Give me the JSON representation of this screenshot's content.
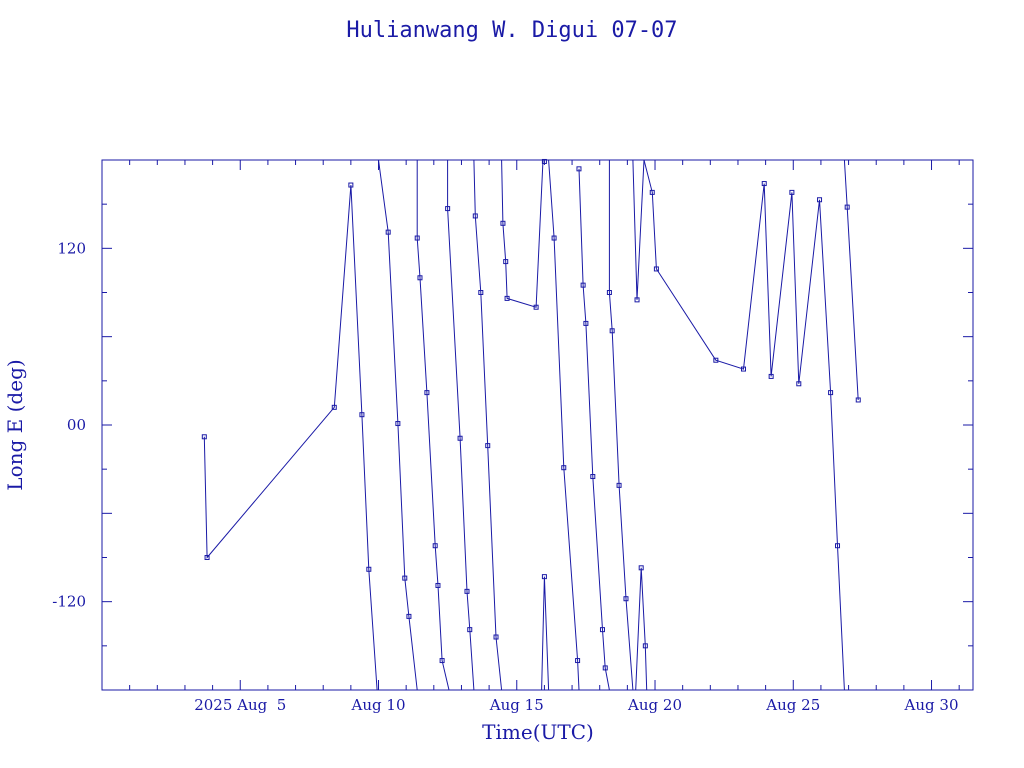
{
  "chart_data": {
    "type": "scatter",
    "title": "Hulianwang W. Digui 07-07",
    "xlabel": "Time(UTC)",
    "ylabel": "Long E (deg)",
    "x_tick_labels": [
      "2025 Aug  5",
      "Aug 10",
      "Aug 15",
      "Aug 20",
      "Aug 25",
      "Aug 30"
    ],
    "x_tick_values": [
      5,
      10,
      15,
      20,
      25,
      30
    ],
    "y_tick_labels": [
      "-120",
      "00",
      "120"
    ],
    "y_tick_values": [
      -120,
      0,
      120
    ],
    "xlim": [
      0,
      31.5
    ],
    "ylim": [
      -180,
      180
    ],
    "colors": {
      "line": "#1a1aa6",
      "background": "#ffffff"
    },
    "segments": [
      [
        [
          3.7,
          -8
        ],
        [
          3.8,
          -90
        ],
        [
          8.4,
          12
        ],
        [
          9.0,
          163
        ],
        [
          9.4,
          7
        ],
        [
          9.65,
          -98
        ],
        [
          9.95,
          -180
        ]
      ],
      [
        [
          10.0,
          180
        ],
        [
          10.35,
          131
        ],
        [
          10.7,
          1
        ],
        [
          10.95,
          -104
        ],
        [
          11.1,
          -130
        ],
        [
          11.4,
          -180
        ]
      ],
      [
        [
          11.4,
          180
        ],
        [
          11.4,
          127
        ],
        [
          11.5,
          100
        ],
        [
          11.75,
          22
        ],
        [
          12.05,
          -82
        ],
        [
          12.15,
          -109
        ],
        [
          12.3,
          -160
        ],
        [
          12.55,
          -180
        ]
      ],
      [
        [
          12.5,
          180
        ],
        [
          12.5,
          147
        ],
        [
          12.95,
          -9
        ],
        [
          13.2,
          -113
        ],
        [
          13.3,
          -139
        ],
        [
          13.45,
          -180
        ]
      ],
      [
        [
          13.45,
          180
        ],
        [
          13.5,
          142
        ],
        [
          13.7,
          90
        ],
        [
          13.95,
          -14
        ],
        [
          14.25,
          -144
        ],
        [
          14.45,
          -180
        ]
      ],
      [
        [
          14.45,
          180
        ],
        [
          14.5,
          137
        ],
        [
          14.6,
          111
        ],
        [
          14.65,
          86
        ],
        [
          15.7,
          80
        ],
        [
          15.95,
          180
        ]
      ],
      [
        [
          16.15,
          180
        ],
        [
          16.35,
          127
        ],
        [
          16.7,
          -29
        ],
        [
          17.2,
          -160
        ],
        [
          17.25,
          -180
        ]
      ],
      [
        [
          17.25,
          174
        ],
        [
          17.4,
          95
        ],
        [
          17.5,
          69
        ],
        [
          17.75,
          -35
        ],
        [
          18.1,
          -139
        ],
        [
          18.2,
          -165
        ],
        [
          18.35,
          -180
        ]
      ],
      [
        [
          18.35,
          180
        ],
        [
          18.35,
          90
        ],
        [
          18.45,
          64
        ],
        [
          18.7,
          -41
        ],
        [
          18.95,
          -118
        ],
        [
          19.2,
          -180
        ]
      ],
      [
        [
          19.2,
          180
        ],
        [
          19.35,
          85
        ],
        [
          19.6,
          180
        ]
      ],
      [
        [
          19.6,
          180
        ],
        [
          19.9,
          158
        ],
        [
          20.05,
          106
        ],
        [
          22.2,
          44
        ],
        [
          23.2,
          38
        ],
        [
          23.95,
          164
        ],
        [
          24.2,
          33
        ],
        [
          24.95,
          158
        ],
        [
          25.2,
          28
        ],
        [
          25.95,
          153
        ],
        [
          26.35,
          22
        ],
        [
          26.6,
          -82
        ],
        [
          26.85,
          -180
        ]
      ],
      [
        [
          26.85,
          180
        ],
        [
          26.95,
          148
        ],
        [
          27.35,
          17
        ]
      ]
    ],
    "markers": [
      [
        3.7,
        -8
      ],
      [
        3.8,
        -90
      ],
      [
        8.4,
        12
      ],
      [
        9.0,
        163
      ],
      [
        9.4,
        7
      ],
      [
        9.65,
        -98
      ],
      [
        10.35,
        131
      ],
      [
        10.7,
        1
      ],
      [
        10.95,
        -104
      ],
      [
        11.1,
        -130
      ],
      [
        11.4,
        127
      ],
      [
        11.5,
        100
      ],
      [
        11.75,
        22
      ],
      [
        12.05,
        -82
      ],
      [
        12.15,
        -109
      ],
      [
        12.3,
        -160
      ],
      [
        12.5,
        147
      ],
      [
        12.95,
        -9
      ],
      [
        13.2,
        -113
      ],
      [
        13.3,
        -139
      ],
      [
        13.5,
        142
      ],
      [
        13.7,
        90
      ],
      [
        13.95,
        -14
      ],
      [
        14.25,
        -144
      ],
      [
        14.5,
        137
      ],
      [
        14.6,
        111
      ],
      [
        14.65,
        86
      ],
      [
        15.7,
        80
      ],
      [
        16.0,
        179
      ],
      [
        16.35,
        127
      ],
      [
        16.7,
        -29
      ],
      [
        17.2,
        -160
      ],
      [
        16.0,
        -103
      ],
      [
        17.25,
        174
      ],
      [
        17.4,
        95
      ],
      [
        17.5,
        69
      ],
      [
        17.75,
        -35
      ],
      [
        18.1,
        -139
      ],
      [
        18.2,
        -165
      ],
      [
        18.35,
        90
      ],
      [
        18.45,
        64
      ],
      [
        18.7,
        -41
      ],
      [
        18.95,
        -118
      ],
      [
        19.35,
        85
      ],
      [
        19.5,
        -97
      ],
      [
        19.65,
        -150
      ],
      [
        19.9,
        158
      ],
      [
        20.05,
        106
      ],
      [
        22.2,
        44
      ],
      [
        23.2,
        38
      ],
      [
        23.95,
        164
      ],
      [
        24.2,
        33
      ],
      [
        24.95,
        158
      ],
      [
        25.2,
        28
      ],
      [
        25.95,
        153
      ],
      [
        26.35,
        22
      ],
      [
        26.6,
        -82
      ],
      [
        26.95,
        148
      ],
      [
        27.35,
        17
      ]
    ],
    "spikes": [
      [
        [
          15.9,
          -180
        ],
        [
          16.0,
          -103
        ],
        [
          16.15,
          -180
        ]
      ],
      [
        [
          19.3,
          -180
        ],
        [
          19.5,
          -97
        ],
        [
          19.65,
          -150
        ],
        [
          19.7,
          -180
        ]
      ]
    ],
    "grid": false,
    "legend": "none"
  }
}
